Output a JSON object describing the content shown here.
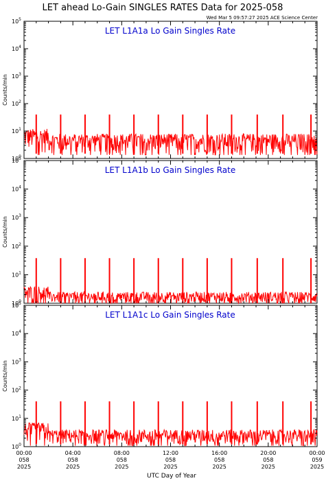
{
  "page": {
    "title": "LET ahead Lo-Gain SINGLES RATES Data for 2025-058",
    "timestamp": "Wed Mar  5 09:57:27 2025 ACE Science Center",
    "xlabel": "UTC Day of Year"
  },
  "colors": {
    "data": "#ff0000",
    "panel_title": "#0000cc",
    "axis": "#000000",
    "background": "#ffffff"
  },
  "chart_data": [
    {
      "type": "line",
      "title": "LET L1A1a Lo Gain Singles Rate",
      "ylabel": "Counts/min",
      "yscale": "log",
      "ylim": [
        1,
        100000
      ],
      "y_ticks": [
        {
          "base": "10",
          "exp": "0"
        },
        {
          "base": "10",
          "exp": "1"
        },
        {
          "base": "10",
          "exp": "2"
        },
        {
          "base": "10",
          "exp": "3"
        },
        {
          "base": "10",
          "exp": "4"
        },
        {
          "base": "10",
          "exp": "5"
        }
      ],
      "xlim_hours": [
        0,
        24
      ],
      "baseline": {
        "low": 1.5,
        "high": 8,
        "early_high": 12
      },
      "spike_hours": [
        1.0,
        3.0,
        5.0,
        7.0,
        9.0,
        11.0,
        13.0,
        15.0,
        17.0,
        19.1,
        21.2,
        23.5
      ],
      "spike_peak": 40
    },
    {
      "type": "line",
      "title": "LET L1A1b Lo Gain Singles Rate",
      "ylabel": "Counts/min",
      "yscale": "log",
      "ylim": [
        1,
        100000
      ],
      "y_ticks": [
        {
          "base": "10",
          "exp": "0"
        },
        {
          "base": "10",
          "exp": "1"
        },
        {
          "base": "10",
          "exp": "2"
        },
        {
          "base": "10",
          "exp": "3"
        },
        {
          "base": "10",
          "exp": "4"
        },
        {
          "base": "10",
          "exp": "5"
        }
      ],
      "xlim_hours": [
        0,
        24
      ],
      "baseline": {
        "low": 1.0,
        "high": 2.5,
        "early_high": 4
      },
      "spike_hours": [
        1.0,
        3.0,
        5.0,
        7.0,
        9.0,
        11.0,
        13.0,
        15.0,
        17.0,
        19.1,
        21.2,
        23.5
      ],
      "spike_peak": 38
    },
    {
      "type": "line",
      "title": "LET L1A1c Lo Gain Singles Rate",
      "ylabel": "Counts/min",
      "yscale": "log",
      "ylim": [
        1,
        100000
      ],
      "y_ticks": [
        {
          "base": "10",
          "exp": "0"
        },
        {
          "base": "10",
          "exp": "1"
        },
        {
          "base": "10",
          "exp": "2"
        },
        {
          "base": "10",
          "exp": "3"
        },
        {
          "base": "10",
          "exp": "4"
        },
        {
          "base": "10",
          "exp": "5"
        }
      ],
      "xlim_hours": [
        0,
        24
      ],
      "baseline": {
        "low": 1.2,
        "high": 4,
        "early_high": 7
      },
      "spike_hours": [
        1.0,
        3.0,
        5.0,
        7.0,
        9.0,
        11.0,
        13.0,
        15.0,
        17.0,
        19.1,
        21.2,
        23.5
      ],
      "spike_peak": 40
    }
  ],
  "x_ticks": [
    {
      "time": "00:00",
      "doy": "058",
      "year": "2025",
      "hour": 0
    },
    {
      "time": "04:00",
      "doy": "058",
      "year": "2025",
      "hour": 4
    },
    {
      "time": "08:00",
      "doy": "058",
      "year": "2025",
      "hour": 8
    },
    {
      "time": "12:00",
      "doy": "058",
      "year": "2025",
      "hour": 12
    },
    {
      "time": "16:00",
      "doy": "058",
      "year": "2025",
      "hour": 16
    },
    {
      "time": "20:00",
      "doy": "058",
      "year": "2025",
      "hour": 20
    },
    {
      "time": "00:00",
      "doy": "059",
      "year": "2025",
      "hour": 24
    }
  ]
}
